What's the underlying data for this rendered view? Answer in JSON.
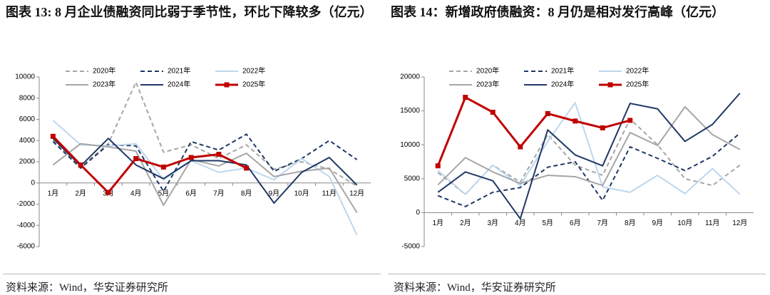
{
  "chart_data": [
    {
      "type": "line",
      "title": "图表 13: 8 月企业债融资同比弱于季节性，环比下降较多（亿元）",
      "source": "资料来源：Wind，华安证券研究所",
      "categories": [
        "1月",
        "2月",
        "3月",
        "4月",
        "5月",
        "6月",
        "7月",
        "8月",
        "9月",
        "10月",
        "11月",
        "12月"
      ],
      "ylim": [
        -6000,
        10000
      ],
      "yticks": [
        -6000,
        -4000,
        -2000,
        0,
        2000,
        4000,
        6000,
        8000,
        10000
      ],
      "series": [
        {
          "name": "2020年",
          "color": "#a6a6a6",
          "dash": true,
          "marker": false,
          "values": [
            4000,
            1500,
            3700,
            9500,
            2900,
            3600,
            2300,
            3600,
            1300,
            2000,
            1300,
            -300
          ]
        },
        {
          "name": "2021年",
          "color": "#1f3864",
          "dash": true,
          "marker": false,
          "values": [
            3900,
            1400,
            3600,
            3500,
            -800,
            3900,
            3100,
            4600,
            1100,
            2300,
            4000,
            2200
          ]
        },
        {
          "name": "2022年",
          "color": "#bdd7ee",
          "dash": false,
          "marker": false,
          "values": [
            5900,
            3600,
            3500,
            3700,
            300,
            2100,
            1000,
            1400,
            300,
            2300,
            600,
            -4900
          ]
        },
        {
          "name": "2023年",
          "color": "#a6a6a6",
          "dash": false,
          "marker": false,
          "values": [
            1700,
            3700,
            3400,
            3000,
            -2100,
            2200,
            1600,
            2800,
            600,
            1100,
            1400,
            -2800
          ]
        },
        {
          "name": "2024年",
          "color": "#1f3864",
          "dash": false,
          "marker": false,
          "values": [
            4200,
            1600,
            4200,
            1700,
            400,
            2100,
            2100,
            1700,
            -1900,
            1000,
            2400,
            -200
          ]
        },
        {
          "name": "2025年",
          "color": "#c00000",
          "dash": false,
          "marker": true,
          "values": [
            4400,
            1700,
            -900,
            2300,
            1500,
            2400,
            2700,
            1400,
            null,
            null,
            null,
            null
          ]
        }
      ]
    },
    {
      "type": "line",
      "title": "图表 14：新增政府债融资：8 月仍是相对发行高峰（亿元）",
      "source": "资料来源：Wind，华安证券研究所",
      "categories": [
        "1月",
        "2月",
        "3月",
        "4月",
        "5月",
        "6月",
        "7月",
        "8月",
        "9月",
        "10月",
        "11月",
        "12月"
      ],
      "ylim": [
        -5000,
        20000
      ],
      "yticks": [
        -5000,
        0,
        5000,
        10000,
        15000,
        20000
      ],
      "series": [
        {
          "name": "2020年",
          "color": "#a6a6a6",
          "dash": true,
          "marker": false,
          "values": [
            5900,
            2700,
            7000,
            4500,
            11500,
            7000,
            5500,
            13800,
            10000,
            5000,
            4000,
            7000
          ]
        },
        {
          "name": "2021年",
          "color": "#1f3864",
          "dash": true,
          "marker": false,
          "values": [
            2500,
            900,
            3000,
            3700,
            6700,
            7500,
            1800,
            9700,
            8000,
            6200,
            8300,
            11700
          ]
        },
        {
          "name": "2022年",
          "color": "#bdd7ee",
          "dash": false,
          "marker": false,
          "values": [
            6200,
            2700,
            7000,
            4000,
            10500,
            16200,
            3800,
            3000,
            5500,
            2800,
            6500,
            2700
          ]
        },
        {
          "name": "2023年",
          "color": "#a6a6a6",
          "dash": false,
          "marker": false,
          "values": [
            4100,
            8100,
            6000,
            4300,
            5500,
            5300,
            4000,
            11800,
            9900,
            15600,
            11500,
            9300
          ]
        },
        {
          "name": "2024年",
          "color": "#1f3864",
          "dash": false,
          "marker": false,
          "values": [
            3000,
            6000,
            4700,
            -900,
            12200,
            8500,
            6900,
            16100,
            15300,
            10500,
            13000,
            17600
          ]
        },
        {
          "name": "2025年",
          "color": "#c00000",
          "dash": false,
          "marker": true,
          "values": [
            6900,
            17000,
            14800,
            9700,
            14600,
            13500,
            12500,
            13600,
            null,
            null,
            null,
            null
          ]
        }
      ]
    }
  ]
}
